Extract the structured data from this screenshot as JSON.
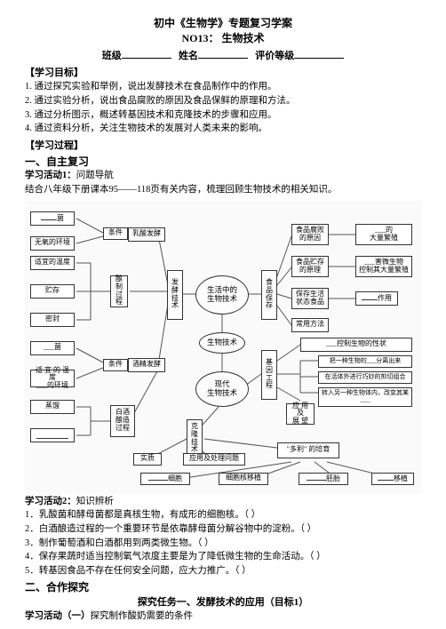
{
  "header": {
    "title1": "初中《生物学》专题复习学案",
    "title2_prefix": "NO13：",
    "title2_text": "生物技术",
    "form_class": "班级",
    "form_name": "姓名",
    "form_grade": "评价等级"
  },
  "goals": {
    "head": "【学习目标】",
    "g1": "1. 通过探究实验和举例，说出发酵技术在食品制作中的作用。",
    "g2": "2. 通过实验分析，说出食品腐败的原因及食品保鲜的原理和方法。",
    "g3": "3. 通过分析图示，概述转基因技术和克隆技术的步骤和应用。",
    "g4": "4. 通过资料分析，关注生物技术的发展对人类未来的影响。"
  },
  "process": {
    "head": "【学习过程】",
    "sec1": "一、自主复习",
    "act1_label": "学习活动1：",
    "act1_text": "问题导航",
    "act1_desc": "结合八年级下册课本95——118页有关内容，梳理回顾生物技术的相关知识。"
  },
  "diagram": {
    "center_life": "生活中的\n生物技术",
    "center_bio": "生物技术",
    "center_modern": "现代\n生物技术",
    "ferment": "发\n酵\n技\n术",
    "food_save": "食\n品\n保\n存",
    "gene_eng": "基\n因\n工\n程",
    "clone": "克\n隆\n技\n术",
    "lactic": "乳酸发酵",
    "alcohol": "酒精发酵",
    "jun1_suffix": "菌",
    "noox": "无氧的环境",
    "condition": "条件",
    "temp1": "适宜的温度",
    "storage": "贮存",
    "seal": "密封",
    "jun2": "___菌",
    "brew_process": "酿\n制\n过\n程",
    "temp2_a": "适 宜 的 温 度",
    "temp2_b": "___的环境",
    "steam": "蒸馏",
    "baijiu_process": "白酒\n酿造\n过程",
    "food_rot": "食品腐败\n的原因",
    "food_store": "食品贮存\n的原理",
    "preserve": "保存生活\n状态食品",
    "methods": "常用方法",
    "mass_repro": "___的\n大量繁殖",
    "kill_micro": "___害微生物\n控制其大量繁殖",
    "use_suffix": "作用",
    "control_trait": "___控制生物的性状",
    "transfer": "把一种生物的___分离出来",
    "recombine": "在活体外进行巧妙的剪切组合",
    "insert": "转入另一种生物体内，改变其某\n___",
    "app_outlook": "应 用 及\n展 望",
    "essence": "实质",
    "app_problem": "应用及处理问题",
    "dolly": "\"多利\" 的培育",
    "cell_transplant1": "细胞",
    "cell_implant": "细胞核移植",
    "embryo_suffix": "胚胎",
    "transplant_suffix": "移植"
  },
  "act2": {
    "label": "学习活动2：",
    "text": "知识辨析",
    "q1": "1．乳酸菌和酵母菌都是真核生物，有成形的细胞核。（      ）",
    "q2": "2．白酒酿造过程的一个重要环节是依靠酵母菌分解谷物中的淀粉。（      ）",
    "q3": "3．制作葡萄酒和白酒都用到两类微生物。（      ）",
    "q4": "4．保存果蔬时适当控制氧气浓度主要是为了降低微生物的生命活动。（      ）",
    "q5": "5．转基因食品不存在任何安全问题，应大力推广。（      ）"
  },
  "coop": {
    "head": "二、合作探究",
    "task_title": "探究任务一、发酵技术的应用（目标1）",
    "act_label": "学习活动（一）",
    "act_text": "探究制作酸奶需要的条件"
  }
}
